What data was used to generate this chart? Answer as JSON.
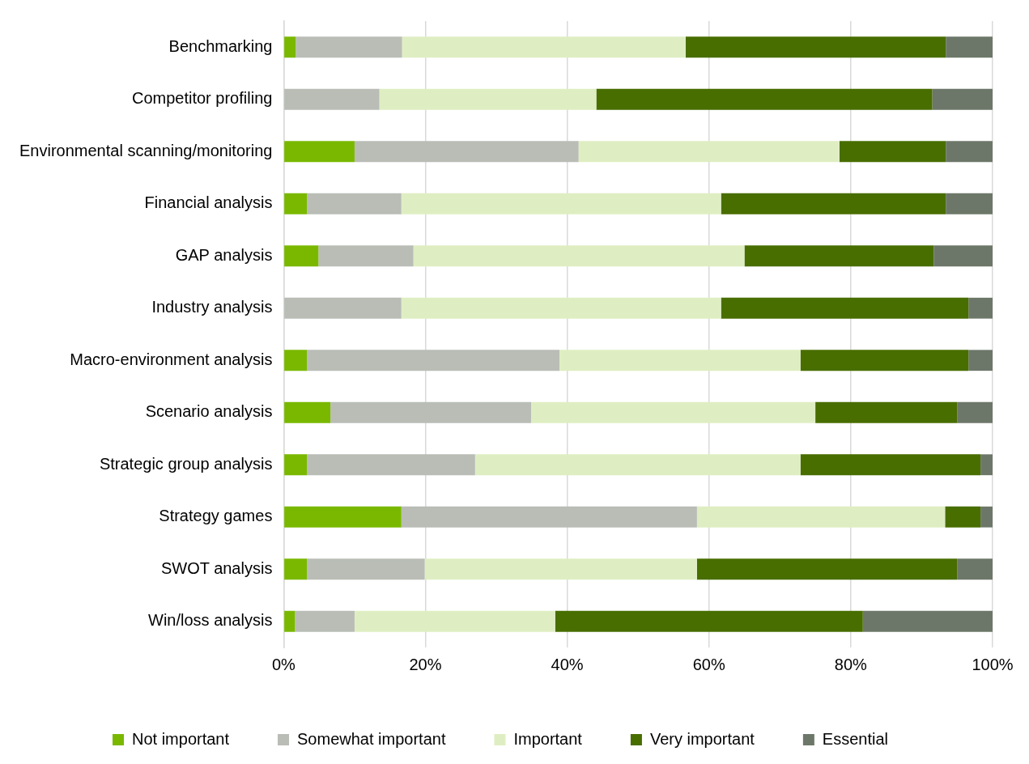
{
  "chart_data": {
    "type": "bar",
    "orientation": "horizontal",
    "stacked": true,
    "categories": [
      "Benchmarking",
      "Competitor profiling",
      "Environmental scanning/monitoring",
      "Financial analysis",
      "GAP analysis",
      "Industry analysis",
      "Macro-environment analysis",
      "Scenario analysis",
      "Strategic group analysis",
      "Strategy games",
      "SWOT analysis",
      "Win/loss analysis"
    ],
    "series": [
      {
        "name": "Not important",
        "color": "#7ab800",
        "values": [
          1.7,
          0,
          10,
          3.3,
          4.9,
          0,
          3.3,
          6.6,
          3.3,
          16.6,
          3.3,
          1.6
        ]
      },
      {
        "name": "Somewhat important",
        "color": "#b9bdb6",
        "values": [
          15,
          13.5,
          31.6,
          13.3,
          13.4,
          16.6,
          35.6,
          28.3,
          23.7,
          41.7,
          16.6,
          8.4
        ]
      },
      {
        "name": "Important",
        "color": "#dfeec2",
        "values": [
          40,
          30.6,
          36.8,
          45.1,
          46.7,
          45.1,
          34,
          40.1,
          45.9,
          35,
          38.4,
          28.3
        ]
      },
      {
        "name": "Very important",
        "color": "#486e00",
        "values": [
          36.7,
          47.4,
          15,
          31.7,
          26.7,
          34.9,
          23.7,
          20,
          25.4,
          5,
          36.7,
          43.4
        ]
      },
      {
        "name": "Essential",
        "color": "#6d7769",
        "values": [
          6.6,
          8.5,
          6.6,
          6.6,
          8.3,
          3.4,
          3.4,
          5,
          1.7,
          1.7,
          5,
          18.3
        ]
      }
    ],
    "xlim": [
      0,
      100
    ],
    "xticks": [
      {
        "value": 0,
        "label": "0%"
      },
      {
        "value": 20,
        "label": "20%"
      },
      {
        "value": 40,
        "label": "40%"
      },
      {
        "value": 60,
        "label": "60%"
      },
      {
        "value": 80,
        "label": "80%"
      },
      {
        "value": 100,
        "label": "100%"
      }
    ],
    "grid": "x",
    "legend": "bottom"
  }
}
